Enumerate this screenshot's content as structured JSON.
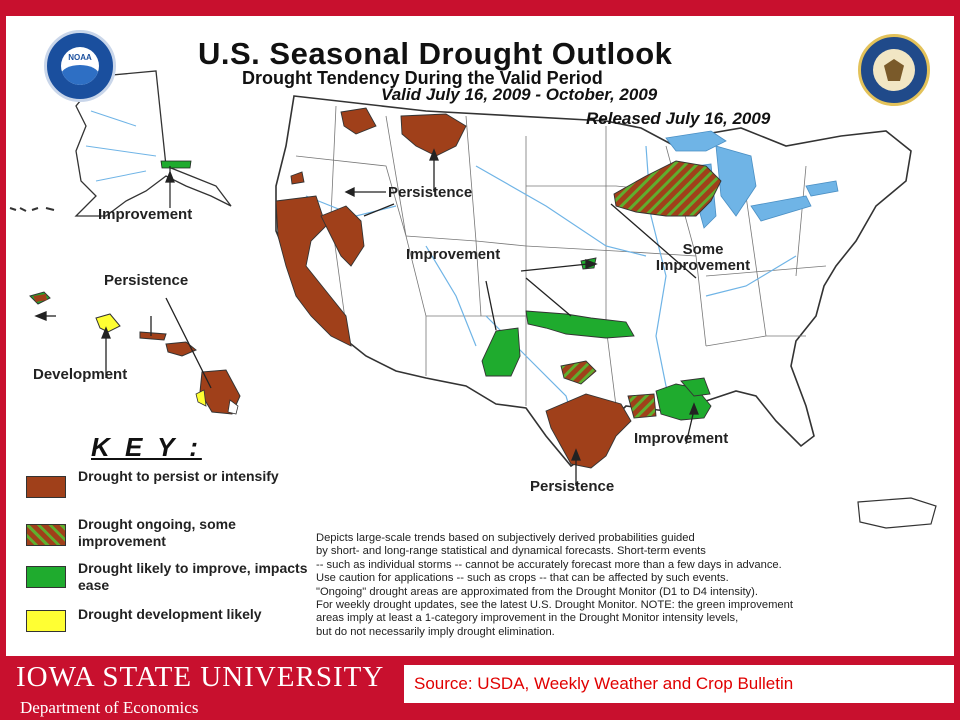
{
  "title": "U.S. Seasonal Drought Outlook",
  "subtitle": "Drought Tendency During the Valid Period",
  "valid_period": "Valid July 16, 2009 - October, 2009",
  "released": "Released July 16, 2009",
  "seals": [
    "noaa-seal",
    "department-of-commerce-seal"
  ],
  "map_labels": {
    "alaska_improvement": "Improvement",
    "hawaii_persistence": "Persistence",
    "hawaii_development": "Development",
    "west_persistence": "Persistence",
    "central_improvement": "Improvement",
    "great_lakes_some_improvement": "Some Improvement",
    "gulf_improvement": "Improvement",
    "texas_persistence": "Persistence"
  },
  "key": {
    "heading": "K E Y :",
    "items": [
      {
        "label": "Drought to persist or intensify",
        "color": "#a0401a",
        "pattern": "solid"
      },
      {
        "label": "Drought ongoing, some improvement",
        "color": "#a0401a",
        "pattern": "hatched-green"
      },
      {
        "label": "Drought likely to improve, impacts ease",
        "color": "#1fab2e",
        "pattern": "solid"
      },
      {
        "label": "Drought development likely",
        "color": "#ffff33",
        "pattern": "solid"
      }
    ]
  },
  "disclaimer": "Depicts large-scale trends based on subjectively derived probabilities guided\nby short- and long-range statistical and dynamical forecasts. Short-term events\n-- such as individual storms -- cannot be accurately forecast more than a few days in advance.\nUse caution for applications -- such as crops -- that can be affected by such events.\n\"Ongoing\" drought areas are approximated from the Drought Monitor (D1 to D4 intensity).\nFor weekly drought updates, see the latest U.S. Drought Monitor. NOTE: the green improvement\nareas imply at least a 1-category improvement in the Drought Monitor intensity levels,\nbut do not necessarily imply drought elimination.",
  "footer": {
    "university": "Iowa State University",
    "department": "Department of Economics",
    "source": "Source: USDA, Weekly Weather and Crop Bulletin"
  },
  "colors": {
    "brand_red": "#c8102e",
    "persist": "#a0401a",
    "improve": "#1fab2e",
    "develop": "#ffff33",
    "water": "#6fb4e6"
  }
}
